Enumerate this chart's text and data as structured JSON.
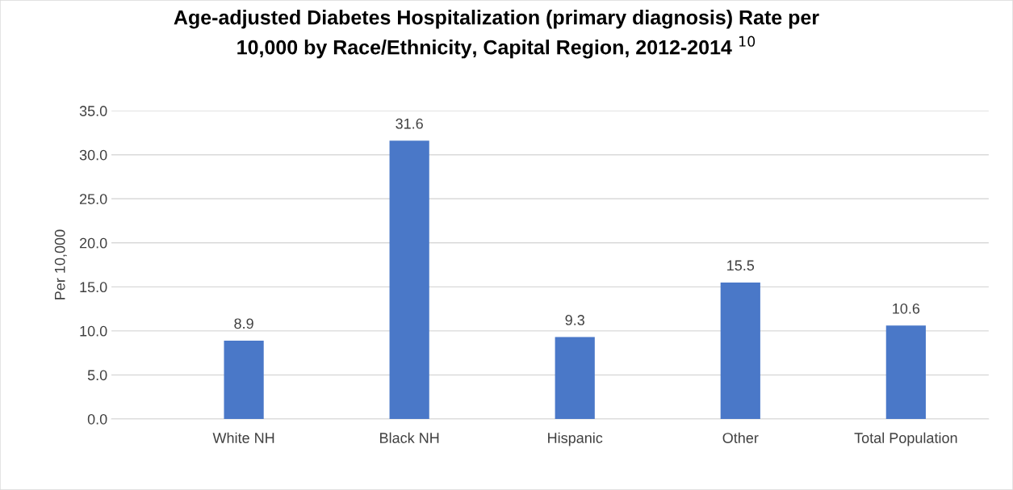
{
  "chart_data": {
    "type": "bar",
    "title": "Age-adjusted Diabetes Hospitalization (primary diagnosis) Rate per\n10,000 by Race/Ethnicity, Capital Region, 2012-2014 $^{10}$",
    "ylabel": "Per 10,000",
    "categories": [
      "White NH",
      "Black NH",
      "Hispanic",
      "Other",
      "Total Population"
    ],
    "values": [
      8.9,
      31.6,
      9.3,
      15.5,
      10.6
    ],
    "color": "#4a78c8",
    "ylim": [
      0,
      35
    ],
    "yticks": [
      {
        "value": 0,
        "label": "0.0"
      },
      {
        "value": 5,
        "label": "5.0"
      },
      {
        "value": 10,
        "label": "10.0"
      },
      {
        "value": 15,
        "label": "15.0"
      },
      {
        "value": 20,
        "label": "20.0"
      },
      {
        "value": 25,
        "label": "25.0"
      },
      {
        "value": 30,
        "label": "30.0"
      },
      {
        "value": 35,
        "label": "35.0"
      }
    ],
    "grid": "y",
    "data_labels": true
  }
}
